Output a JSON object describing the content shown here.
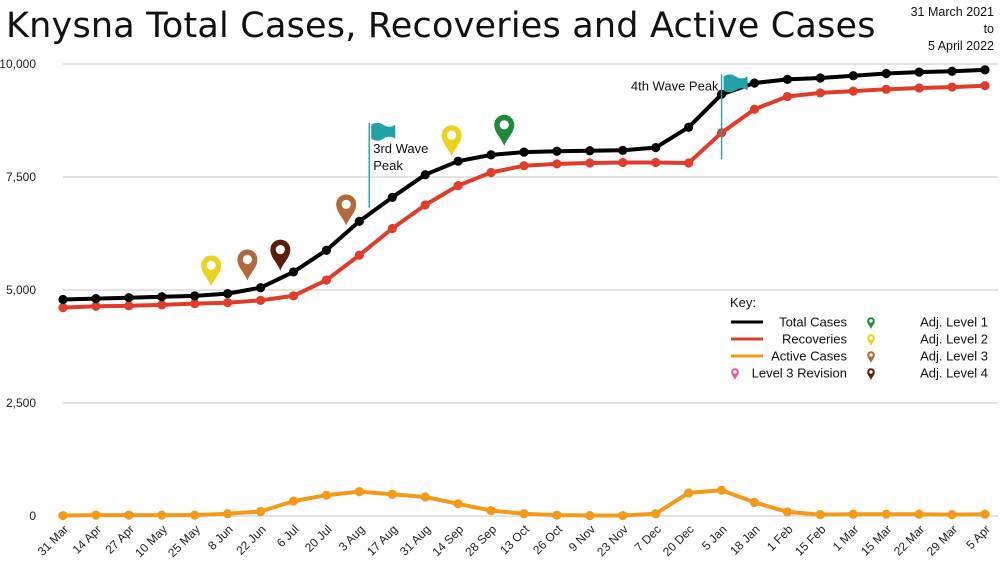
{
  "title": "Knysna Total Cases, Recoveries and Active Cases",
  "date_range": {
    "from": "31 March 2021",
    "sep": "to",
    "to": "5 April 2022"
  },
  "chart_data": {
    "type": "line",
    "title": "Knysna Total Cases, Recoveries and Active Cases",
    "xlabel": "",
    "ylabel": "",
    "ylim": [
      0,
      10000
    ],
    "yticks": [
      0,
      2500,
      5000,
      7500,
      10000
    ],
    "ytick_labels": [
      "0",
      "2,500",
      "5,000",
      "7,500",
      "10,000"
    ],
    "grid": true,
    "categories": [
      "31 Mar",
      "14 Apr",
      "27 Apr",
      "10 May",
      "25 May",
      "8 Jun",
      "22 Jun",
      "6 Jul",
      "20 Jul",
      "3 Aug",
      "17 Aug",
      "31 Aug",
      "14 Sep",
      "28 Sep",
      "13 Oct",
      "26 Oct",
      "9 Nov",
      "23 Nov",
      "7 Dec",
      "20 Dec",
      "5 Jan",
      "18 Jan",
      "1 Feb",
      "15 Feb",
      "1 Mar",
      "15 Mar",
      "22 Mar",
      "29 Mar",
      "5 Apr"
    ],
    "series": [
      {
        "name": "Total Cases",
        "color": "#000000",
        "values": [
          4790,
          4810,
          4830,
          4850,
          4870,
          4920,
          5050,
          5400,
          5880,
          6520,
          7050,
          7550,
          7850,
          7990,
          8050,
          8070,
          8080,
          8090,
          8150,
          8600,
          9330,
          9580,
          9660,
          9690,
          9740,
          9790,
          9820,
          9840,
          9870
        ]
      },
      {
        "name": "Recoveries",
        "color": "#e03c2a",
        "values": [
          4610,
          4640,
          4650,
          4670,
          4700,
          4720,
          4770,
          4870,
          5220,
          5770,
          6360,
          6880,
          7310,
          7600,
          7750,
          7790,
          7810,
          7820,
          7820,
          7810,
          8480,
          9000,
          9280,
          9360,
          9400,
          9440,
          9470,
          9490,
          9520
        ]
      },
      {
        "name": "Active Cases",
        "color": "#f39a1a",
        "values": [
          10,
          20,
          20,
          20,
          20,
          50,
          100,
          330,
          460,
          540,
          480,
          420,
          270,
          120,
          50,
          20,
          10,
          10,
          50,
          510,
          570,
          300,
          90,
          30,
          40,
          40,
          40,
          30,
          40
        ]
      }
    ],
    "events": [
      {
        "type": "flag",
        "label": "3rd Wave Peak",
        "label_lines": [
          "3rd Wave",
          "Peak"
        ],
        "x_index": 9.3,
        "value": 8700,
        "color": "#24a0a7"
      },
      {
        "type": "flag",
        "label": "4th Wave Peak",
        "x_index": 20.0,
        "value": 9770,
        "color": "#24a0a7"
      }
    ],
    "markers": [
      {
        "level": "Adj. Level 2",
        "x_index": 4.5,
        "value": 5080,
        "color": "#ecd21e"
      },
      {
        "level": "Adj. Level 3",
        "x_index": 5.6,
        "value": 5210,
        "color": "#b06a3c"
      },
      {
        "level": "Adj. Level 4",
        "x_index": 6.6,
        "value": 5430,
        "color": "#5a1e0c"
      },
      {
        "level": "Adj. Level 3",
        "x_index": 8.6,
        "value": 6430,
        "color": "#b06a3c"
      },
      {
        "level": "Adj. Level 2",
        "x_index": 11.8,
        "value": 7960,
        "color": "#ecd21e"
      },
      {
        "level": "Adj. Level 1",
        "x_index": 13.4,
        "value": 8190,
        "color": "#1e8a3c"
      }
    ],
    "legend": {
      "title": "Key:",
      "placement": "right-middle",
      "line_items": [
        {
          "label": "Total Cases",
          "color": "#000000"
        },
        {
          "label": "Recoveries",
          "color": "#e03c2a"
        },
        {
          "label": "Active Cases",
          "color": "#f39a1a"
        }
      ],
      "pin_items_left": [
        {
          "label": "Level 3 Revision",
          "color": "#e8559a"
        }
      ],
      "pin_items_right": [
        {
          "label": "Adj. Level 1",
          "color": "#1e8a3c"
        },
        {
          "label": "Adj. Level 2",
          "color": "#ecd21e"
        },
        {
          "label": "Adj. Level 3",
          "color": "#b06a3c"
        },
        {
          "label": "Adj. Level 4",
          "color": "#5a1e0c"
        }
      ]
    }
  }
}
